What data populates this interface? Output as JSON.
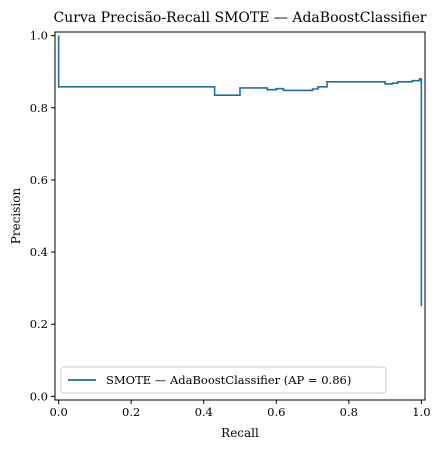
{
  "chart_data": {
    "type": "line",
    "title": "Curva Precisão-Recall SMOTE — AdaBoostClassifier",
    "xlabel": "Recall",
    "ylabel": "Precision",
    "xlim": [
      -0.01,
      1.01
    ],
    "ylim": [
      -0.01,
      1.01
    ],
    "xticks": [
      "0.0",
      "0.2",
      "0.4",
      "0.6",
      "0.8",
      "1.0"
    ],
    "yticks": [
      "0.0",
      "0.2",
      "0.4",
      "0.6",
      "0.8",
      "1.0"
    ],
    "grid": false,
    "legend_position": "lower-left",
    "step": "post",
    "series": [
      {
        "name": "SMOTE — AdaBoostClassifier (AP = 0.86)",
        "color": "#1f6f9a",
        "points": [
          [
            0.0,
            1.0
          ],
          [
            0.0,
            0.858
          ],
          [
            0.43,
            0.858
          ],
          [
            0.43,
            0.835
          ],
          [
            0.5,
            0.835
          ],
          [
            0.5,
            0.855
          ],
          [
            0.575,
            0.855
          ],
          [
            0.575,
            0.85
          ],
          [
            0.6,
            0.85
          ],
          [
            0.6,
            0.853
          ],
          [
            0.62,
            0.853
          ],
          [
            0.62,
            0.848
          ],
          [
            0.7,
            0.848
          ],
          [
            0.7,
            0.852
          ],
          [
            0.715,
            0.852
          ],
          [
            0.715,
            0.858
          ],
          [
            0.74,
            0.858
          ],
          [
            0.74,
            0.872
          ],
          [
            0.9,
            0.872
          ],
          [
            0.9,
            0.866
          ],
          [
            0.92,
            0.866
          ],
          [
            0.92,
            0.868
          ],
          [
            0.935,
            0.868
          ],
          [
            0.935,
            0.872
          ],
          [
            0.975,
            0.872
          ],
          [
            0.975,
            0.875
          ],
          [
            0.995,
            0.875
          ],
          [
            0.995,
            0.88
          ],
          [
            1.0,
            0.88
          ],
          [
            1.0,
            0.25
          ]
        ]
      }
    ]
  }
}
